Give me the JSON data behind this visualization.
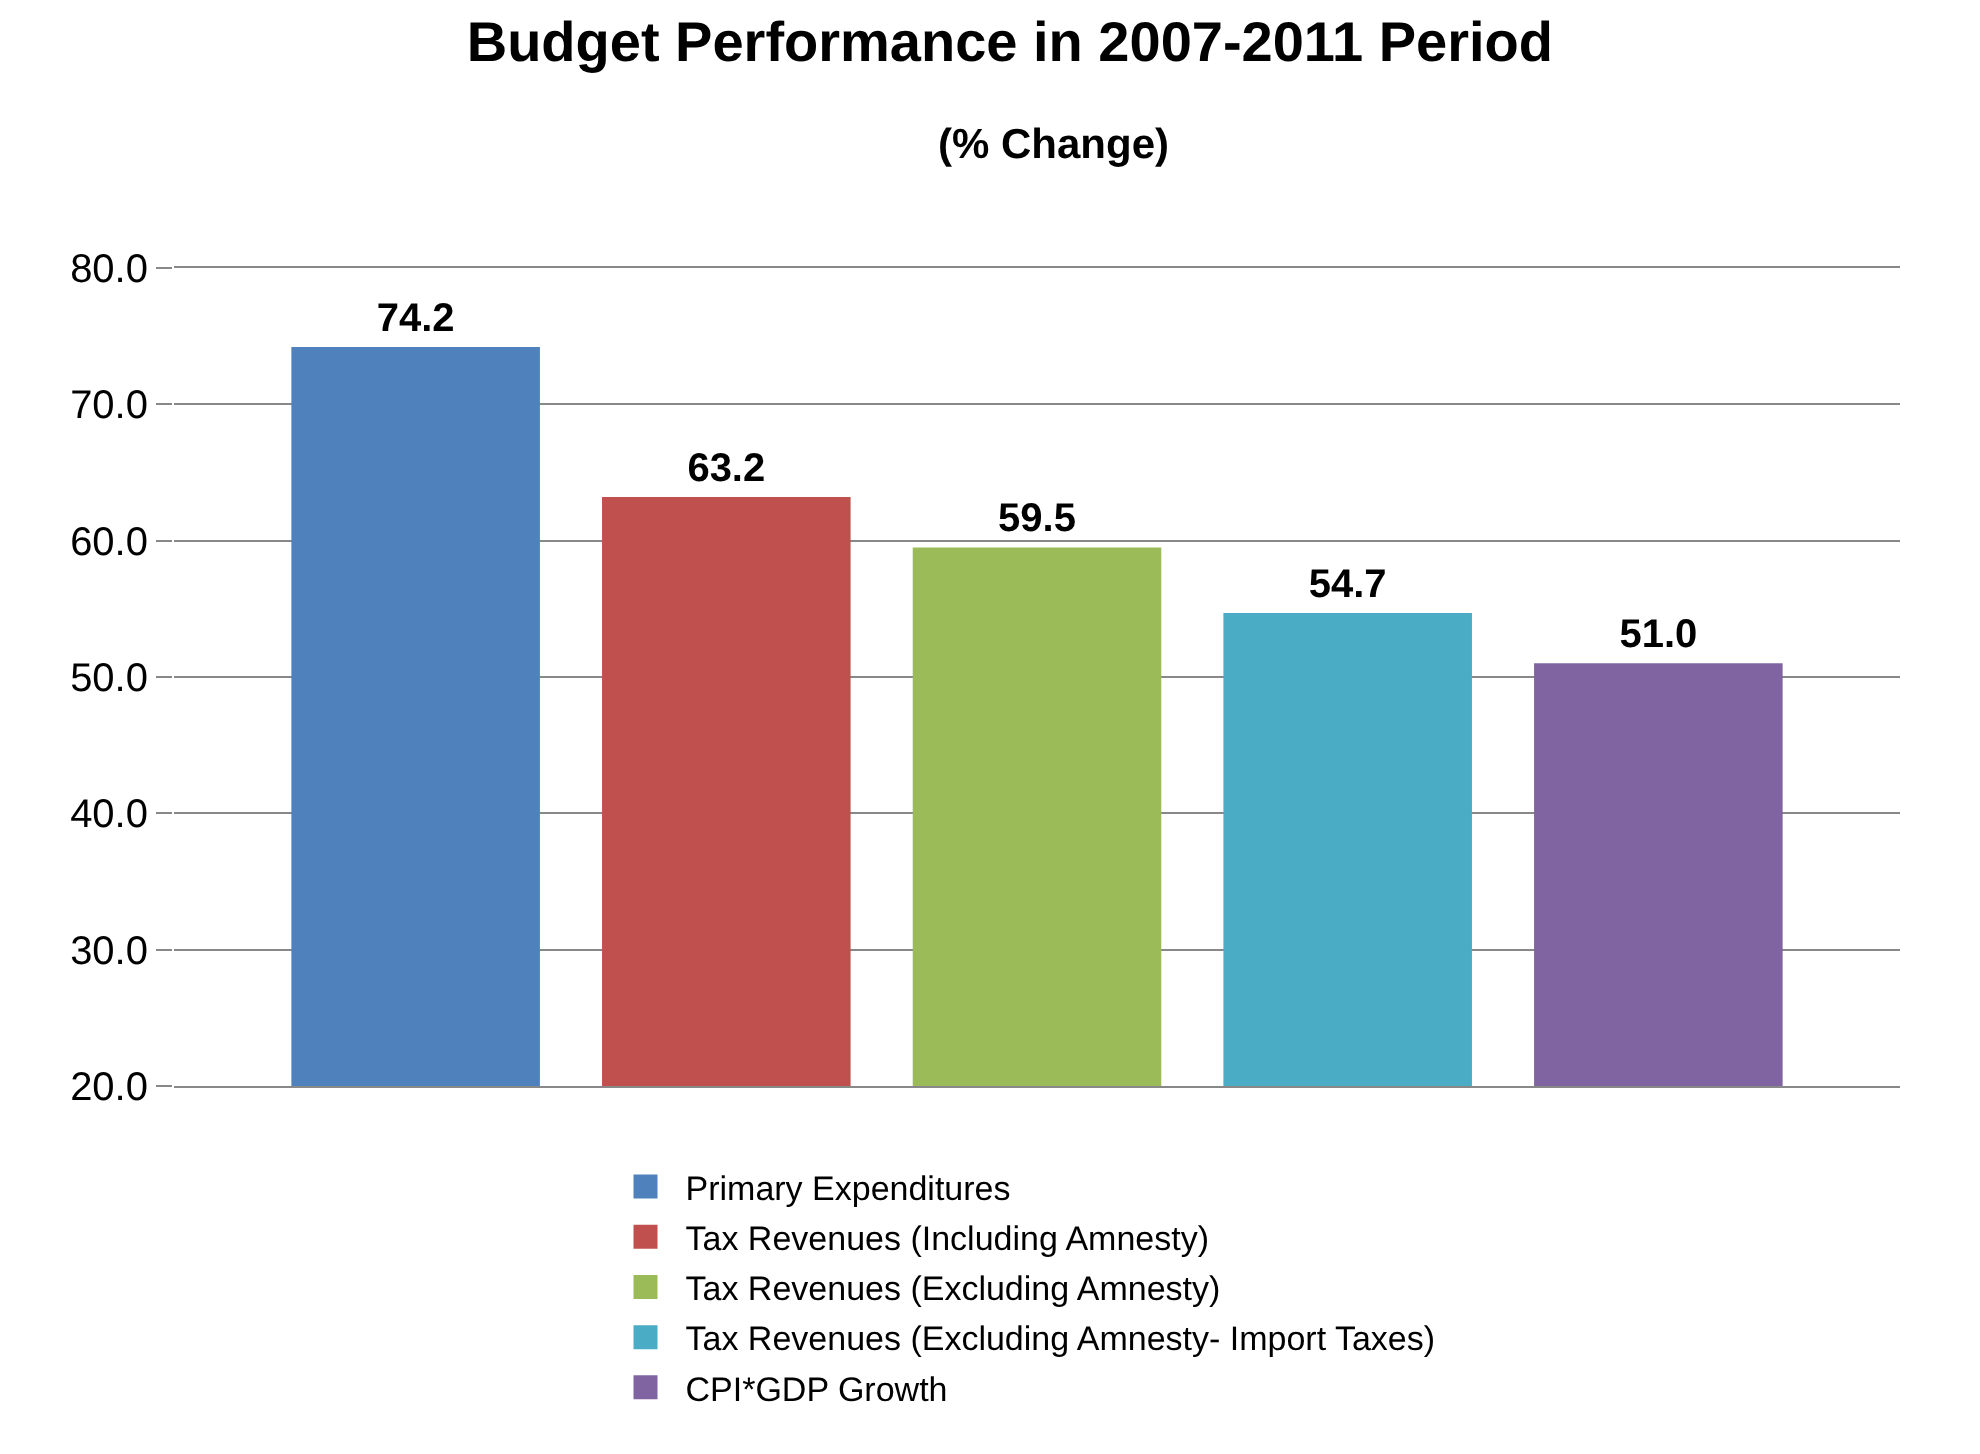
{
  "chart_data": {
    "type": "bar",
    "title": "Budget Performance in 2007-2011 Period",
    "subtitle": "(% Change)",
    "categories": [
      null
    ],
    "series": [
      {
        "name": "Primary Expenditures",
        "color": "#4f81bd",
        "values": [
          74.2
        ],
        "value_labels": [
          "74.2"
        ]
      },
      {
        "name": "Tax Revenues (Including Amnesty)",
        "color": "#c0504d",
        "values": [
          63.2
        ],
        "value_labels": [
          "63.2"
        ]
      },
      {
        "name": "Tax Revenues (Excluding Amnesty)",
        "color": "#9bbb59",
        "values": [
          59.5
        ],
        "value_labels": [
          "59.5"
        ]
      },
      {
        "name": "Tax Revenues (Excluding Amnesty- Import Taxes)",
        "color": "#4bacc6",
        "values": [
          54.7
        ],
        "value_labels": [
          "54.7"
        ]
      },
      {
        "name": "CPI*GDP Growth",
        "color": "#8064a2",
        "values": [
          51.0
        ],
        "value_labels": [
          "51.0"
        ]
      }
    ],
    "ylim": [
      20,
      80
    ],
    "yticks": [
      {
        "value": 20,
        "label": "20.0"
      },
      {
        "value": 30,
        "label": "30.0"
      },
      {
        "value": 40,
        "label": "40.0"
      },
      {
        "value": 50,
        "label": "50.0"
      },
      {
        "value": 60,
        "label": "60.0"
      },
      {
        "value": 70,
        "label": "70.0"
      },
      {
        "value": 80,
        "label": "80.0"
      }
    ],
    "grid": "y",
    "legend": "bottom"
  }
}
